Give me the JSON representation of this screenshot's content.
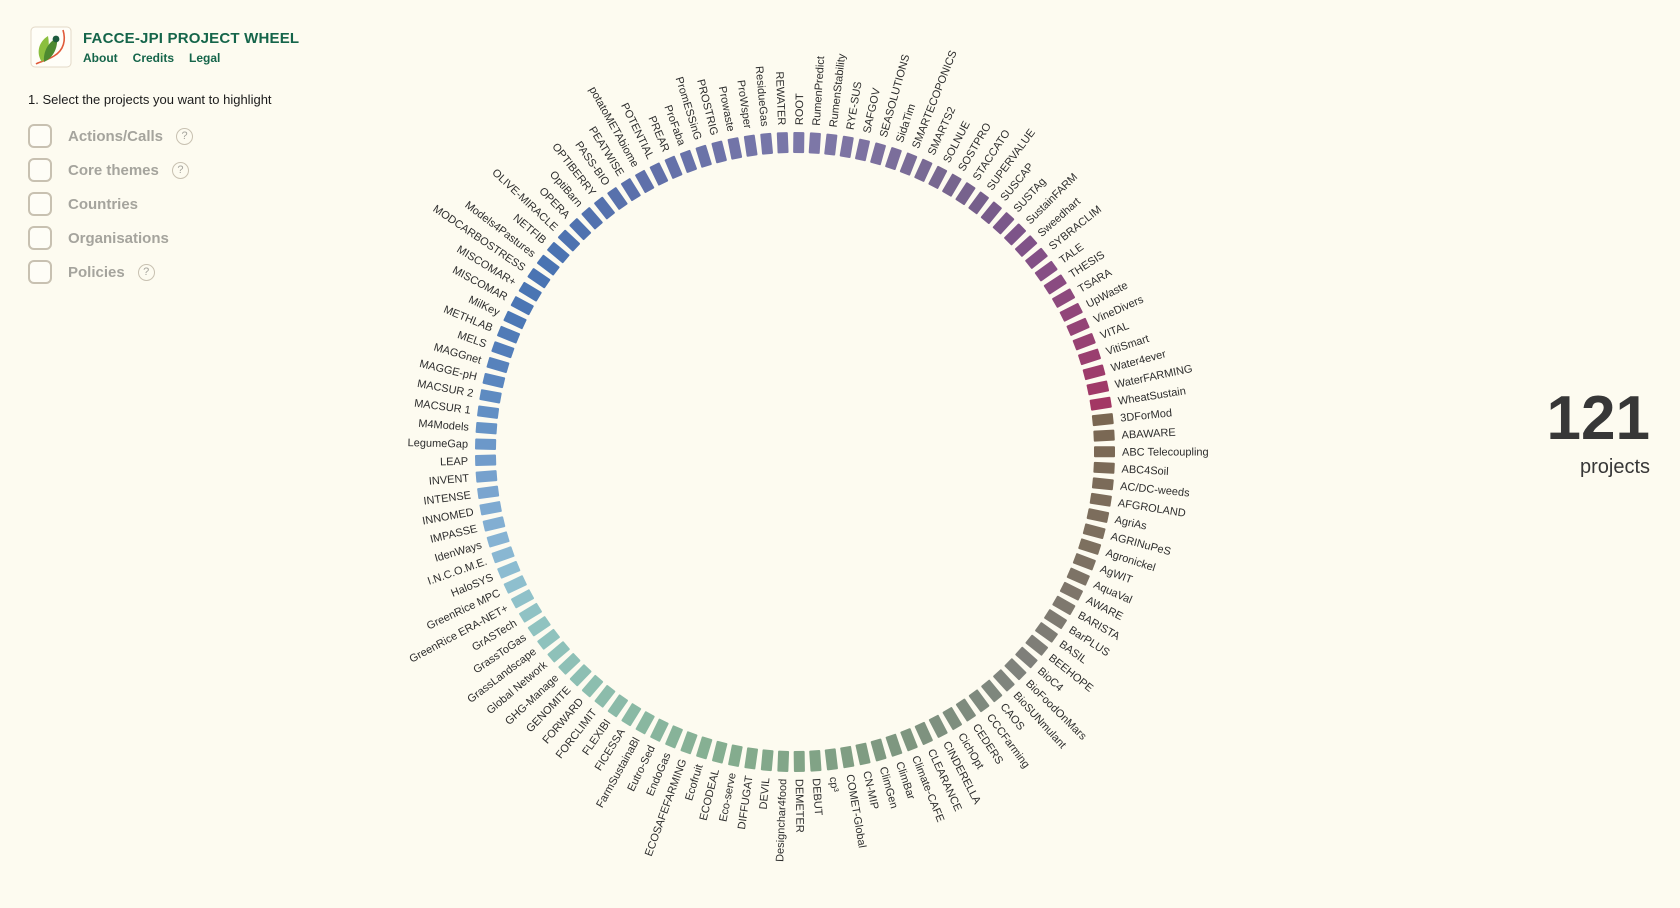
{
  "header": {
    "title": "FACCE-JPI PROJECT WHEEL",
    "links": [
      {
        "label": "About"
      },
      {
        "label": "Credits"
      },
      {
        "label": "Legal"
      }
    ]
  },
  "icons": {
    "question_mark": "?"
  },
  "sidebar": {
    "instruction": "1. Select the projects you want to highlight",
    "filters": [
      {
        "label": "Actions/Calls",
        "has_help": true
      },
      {
        "label": "Core themes",
        "has_help": true
      },
      {
        "label": "Countries",
        "has_help": false
      },
      {
        "label": "Organisations",
        "has_help": false
      },
      {
        "label": "Policies",
        "has_help": true
      }
    ]
  },
  "summary": {
    "count": "121",
    "label": "projects"
  },
  "wheel": {
    "start_angle": 84,
    "label_color": "#2d2d2d",
    "projects": [
      "3DForMod",
      "ABAWARE",
      "ABC Telecoupling",
      "ABC4Soil",
      "AC/DC-weeds",
      "AFGROLAND",
      "AgriAs",
      "AGRINuPeS",
      "Agronickel",
      "AgWIT",
      "AquaVal",
      "AWARE",
      "BARISTA",
      "BarPLUS",
      "BASIL",
      "BEEHOPE",
      "BioC4",
      "BioFoodOnMars",
      "BioSUNmulant",
      "CAOS",
      "CCCFarming",
      "CEDERS",
      "CichOpt",
      "CINDERELLA",
      "CLEARANCE",
      "Climate-CAFE",
      "ClimBar",
      "ClimGen",
      "CN-MIP",
      "COMET-Global",
      "cp³",
      "DEBUT",
      "DEMETER",
      "Designchar4food",
      "DEVIL",
      "DIFFUGAT",
      "Eco-serve",
      "ECODEAL",
      "Ecofruit",
      "ECOSAFEFARMING",
      "EndoGas",
      "Eutro-Sed",
      "FarmSustainaBl",
      "FICESSA",
      "FLEXIBI",
      "FORCLIMIT",
      "FORWARD",
      "GENOMITE",
      "GHG-Manage",
      "Global Network",
      "GrassLandscape",
      "GrassToGas",
      "GrASTech",
      "GreenRice ERA-NET+",
      "GreenRice MPC",
      "HaloSYS",
      "I.N.C.O.M.E.",
      "IdenWays",
      "IMPASSE",
      "INNOMED",
      "INTENSE",
      "INVENT",
      "LEAP",
      "LegumeGap",
      "M4Models",
      "MACSUR 1",
      "MACSUR 2",
      "MAGGE-pH",
      "MAGGnet",
      "MELS",
      "METHLAB",
      "MilKey",
      "MISCOMAR",
      "MISCOMAR+",
      "MODCARBOSTRESS",
      "Models4Pastures",
      "NETFIB",
      "OLIVE-MIRACLE",
      "OPERA",
      "OptiBarn",
      "OPTIBERRY",
      "PASS-BIO",
      "PEATWISE",
      "potatoMETAbiome",
      "POTENTIAL",
      "PREAR",
      "ProFaba",
      "PromESSinG",
      "PROSTRIG",
      "Prowaste",
      "ProWsper",
      "ResidueGas",
      "REWATER",
      "ROOT",
      "RumenPredict",
      "RumenStability",
      "RYE-SUS",
      "SAFGOV",
      "SEASOLUTIONS",
      "SidaTim",
      "SMARTECOPONICS",
      "SMARTS2",
      "SOLNUE",
      "SOSTPRO",
      "STACCATO",
      "SUPERVALUE",
      "SUSCAP",
      "SUSTAg",
      "SustainFARM",
      "Sweedhart",
      "SYBRACLIM",
      "TALE",
      "THESIS",
      "TSARA",
      "UpWaste",
      "VineDivers",
      "VITAL",
      "VitiSmart",
      "Water4ever",
      "WaterFARMING",
      "WheatSustain"
    ],
    "color_stops": [
      {
        "t": 0.0,
        "c": "#7a6752"
      },
      {
        "t": 0.07,
        "c": "#7d7060"
      },
      {
        "t": 0.11,
        "c": "#7e7a72"
      },
      {
        "t": 0.14,
        "c": "#7f817c"
      },
      {
        "t": 0.17,
        "c": "#7e8a7e"
      },
      {
        "t": 0.21,
        "c": "#7e957f"
      },
      {
        "t": 0.26,
        "c": "#81a386"
      },
      {
        "t": 0.31,
        "c": "#85ae90"
      },
      {
        "t": 0.35,
        "c": "#89b7a0"
      },
      {
        "t": 0.39,
        "c": "#8dbfb2"
      },
      {
        "t": 0.43,
        "c": "#90c3c2"
      },
      {
        "t": 0.455,
        "c": "#8dbed1"
      },
      {
        "t": 0.48,
        "c": "#84b0d3"
      },
      {
        "t": 0.51,
        "c": "#75a0cd"
      },
      {
        "t": 0.54,
        "c": "#6390c4"
      },
      {
        "t": 0.57,
        "c": "#5580bb"
      },
      {
        "t": 0.595,
        "c": "#4b77b4"
      },
      {
        "t": 0.625,
        "c": "#4973b2"
      },
      {
        "t": 0.66,
        "c": "#5271ae"
      },
      {
        "t": 0.7,
        "c": "#6270a9"
      },
      {
        "t": 0.74,
        "c": "#7174a8"
      },
      {
        "t": 0.78,
        "c": "#7d78a8"
      },
      {
        "t": 0.81,
        "c": "#7d72a1"
      },
      {
        "t": 0.85,
        "c": "#786890"
      },
      {
        "t": 0.875,
        "c": "#765f8b"
      },
      {
        "t": 0.9,
        "c": "#7d5489"
      },
      {
        "t": 0.925,
        "c": "#864e85"
      },
      {
        "t": 0.95,
        "c": "#914679"
      },
      {
        "t": 0.975,
        "c": "#9a3f6f"
      },
      {
        "t": 1.0,
        "c": "#a33764"
      }
    ]
  }
}
